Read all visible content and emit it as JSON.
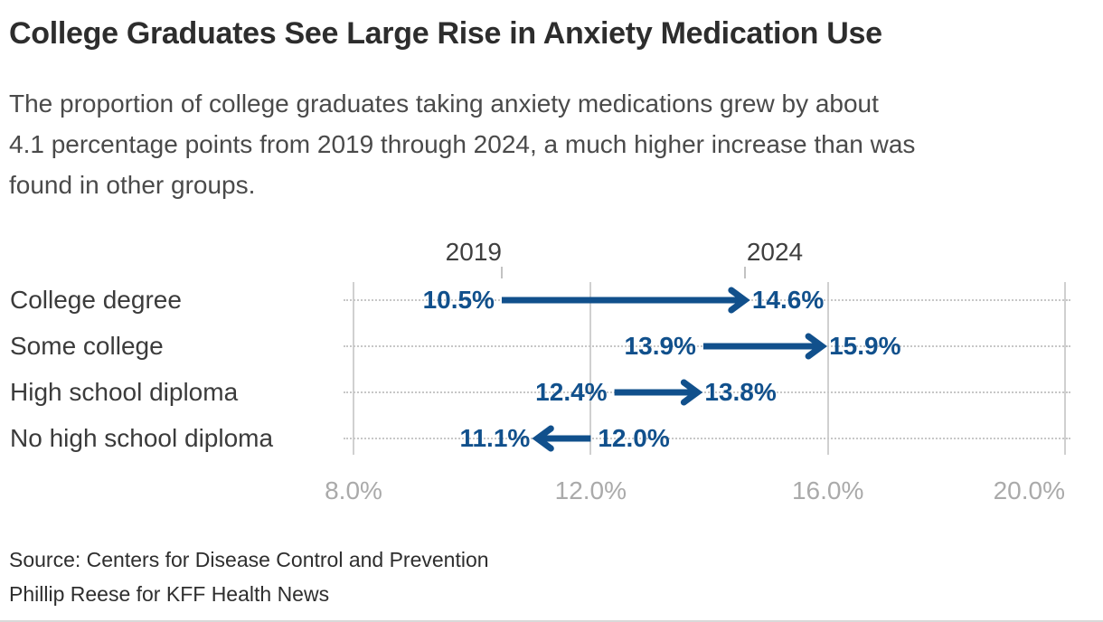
{
  "header": {
    "title": "College Graduates See Large Rise in Anxiety Medication Use",
    "subtitle_lines": [
      "The proportion of college graduates taking anxiety medications grew by about",
      "4.1 percentage points from 2019 through 2024, a much higher increase than was",
      "found in other groups."
    ]
  },
  "footer": {
    "source_line": "Source: Centers for Disease Control and Prevention",
    "byline": "Phillip Reese for KFF Health News"
  },
  "chart_data": {
    "type": "arrow",
    "title": "College Graduates See Large Rise in Anxiety Medication Use",
    "categories": [
      "College degree",
      "Some college",
      "High school diploma",
      "No high school diploma"
    ],
    "series": [
      {
        "name": "2019",
        "values": [
          10.5,
          13.9,
          12.4,
          12.0
        ]
      },
      {
        "name": "2024",
        "values": [
          14.6,
          15.9,
          13.8,
          11.1
        ]
      }
    ],
    "start_labels": [
      "10.5%",
      "13.9%",
      "12.4%",
      "12.0%"
    ],
    "end_labels": [
      "14.6%",
      "15.9%",
      "13.8%",
      "11.1%"
    ],
    "column_headers": [
      {
        "label": "2019",
        "anchor_value": 10.5,
        "align": "right"
      },
      {
        "label": "2024",
        "anchor_value": 14.6,
        "align": "left"
      }
    ],
    "x_axis": {
      "range": [
        8,
        20
      ],
      "ticks": [
        8,
        12,
        16,
        20
      ],
      "tick_labels": [
        "8.0%",
        "12.0%",
        "16.0%",
        "20.0%"
      ],
      "grid": true,
      "unit": "percent"
    },
    "legend": "none",
    "colors": {
      "arrow": "#11508c",
      "value_label": "#11508c",
      "grid_line": "#d0d0d0",
      "row_dotted_line": "#c7c7c7",
      "axis_label": "#aaaaaa",
      "category_label": "#3b3b3b",
      "year_label": "#3f3f3f"
    }
  }
}
